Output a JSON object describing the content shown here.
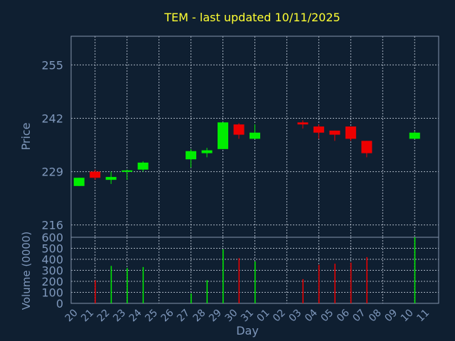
{
  "chart_data": [
    {
      "type": "candlestick",
      "title": "TEM - last updated 10/11/2025",
      "ylabel": "Price",
      "xlabel": "Day",
      "ylim": [
        213,
        262
      ],
      "yticks": [
        216,
        229,
        242,
        255
      ],
      "grid": true,
      "categories": [
        "20",
        "21",
        "22",
        "23",
        "24",
        "25",
        "26",
        "27",
        "28",
        "29",
        "30",
        "31",
        "01",
        "02",
        "03",
        "04",
        "05",
        "06",
        "07",
        "08",
        "09",
        "10",
        "11"
      ],
      "candles": [
        {
          "x": "20",
          "open": 225.5,
          "close": 227.5,
          "high": 227.5,
          "low": 225.5
        },
        {
          "x": "21",
          "open": 229.0,
          "close": 227.5,
          "high": 229.5,
          "low": 227.0
        },
        {
          "x": "22",
          "open": 227.0,
          "close": 227.7,
          "high": 229.0,
          "low": 226.0
        },
        {
          "x": "23",
          "open": 229.0,
          "close": 229.3,
          "high": 229.5,
          "low": 227.0
        },
        {
          "x": "24",
          "open": 229.5,
          "close": 231.2,
          "high": 231.5,
          "low": 229.0
        },
        {
          "x": "27",
          "open": 232.0,
          "close": 234.0,
          "high": 234.5,
          "low": 230.0
        },
        {
          "x": "28",
          "open": 233.5,
          "close": 234.2,
          "high": 234.8,
          "low": 232.5
        },
        {
          "x": "29",
          "open": 234.5,
          "close": 241.0,
          "high": 241.0,
          "low": 234.5
        },
        {
          "x": "30",
          "open": 240.5,
          "close": 238.0,
          "high": 240.8,
          "low": 237.0
        },
        {
          "x": "31",
          "open": 237.0,
          "close": 238.5,
          "high": 240.5,
          "low": 237.0
        },
        {
          "x": "03",
          "open": 241.0,
          "close": 240.5,
          "high": 241.5,
          "low": 239.5
        },
        {
          "x": "04",
          "open": 240.0,
          "close": 238.5,
          "high": 240.5,
          "low": 237.0
        },
        {
          "x": "05",
          "open": 239.0,
          "close": 238.0,
          "high": 239.0,
          "low": 236.5
        },
        {
          "x": "06",
          "open": 240.0,
          "close": 237.0,
          "high": 240.0,
          "low": 236.5
        },
        {
          "x": "07",
          "open": 236.5,
          "close": 233.5,
          "high": 236.5,
          "low": 232.5
        },
        {
          "x": "10",
          "open": 237.0,
          "close": 238.5,
          "high": 238.8,
          "low": 237.0
        }
      ]
    },
    {
      "type": "bar",
      "ylabel": "Volume (0000)",
      "ylim": [
        0,
        600
      ],
      "yticks": [
        0,
        100,
        200,
        300,
        400,
        500,
        600
      ],
      "grid": true,
      "categories": [
        "20",
        "21",
        "22",
        "23",
        "24",
        "25",
        "26",
        "27",
        "28",
        "29",
        "30",
        "31",
        "01",
        "02",
        "03",
        "04",
        "05",
        "06",
        "07",
        "08",
        "09",
        "10",
        "11"
      ],
      "bars": [
        {
          "x": "21",
          "value": 210,
          "direction": "down"
        },
        {
          "x": "22",
          "value": 340,
          "direction": "up"
        },
        {
          "x": "23",
          "value": 320,
          "direction": "up"
        },
        {
          "x": "24",
          "value": 330,
          "direction": "up"
        },
        {
          "x": "27",
          "value": 90,
          "direction": "up"
        },
        {
          "x": "28",
          "value": 210,
          "direction": "up"
        },
        {
          "x": "29",
          "value": 490,
          "direction": "up"
        },
        {
          "x": "30",
          "value": 410,
          "direction": "down"
        },
        {
          "x": "31",
          "value": 380,
          "direction": "up"
        },
        {
          "x": "03",
          "value": 220,
          "direction": "down"
        },
        {
          "x": "04",
          "value": 350,
          "direction": "down"
        },
        {
          "x": "05",
          "value": 360,
          "direction": "down"
        },
        {
          "x": "06",
          "value": 370,
          "direction": "down"
        },
        {
          "x": "07",
          "value": 420,
          "direction": "down"
        },
        {
          "x": "10",
          "value": 600,
          "direction": "up"
        }
      ]
    }
  ],
  "colors": {
    "background": "#0f1f31",
    "title": "#ffff33",
    "text": "#7f98bc",
    "up": "#00ee00",
    "down": "#ee0000",
    "grid": "#b8c2d0",
    "frame": "#8595ad"
  }
}
